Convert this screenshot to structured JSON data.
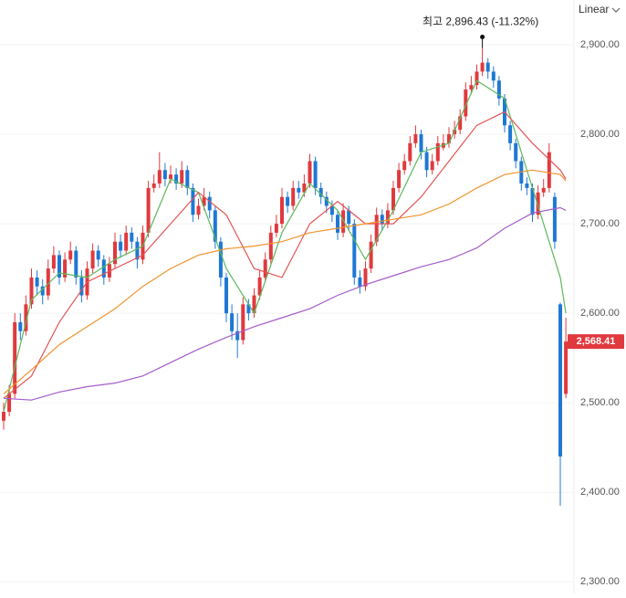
{
  "chart_data": {
    "type": "candlestick",
    "scale_mode": "Linear",
    "annotation": "최고 2,896.43 (-11.32%)",
    "last_price_label": "2,568.41",
    "up_color": "#e0393e",
    "down_color": "#1e78d4",
    "ylim": [
      2287,
      2950
    ],
    "yticks": [
      {
        "value": 2300,
        "label": "2,300.00"
      },
      {
        "value": 2400,
        "label": "2,400.00"
      },
      {
        "value": 2500,
        "label": "2,500.00"
      },
      {
        "value": 2600,
        "label": "2,600.00"
      },
      {
        "value": 2700,
        "label": "2,700.00"
      },
      {
        "value": 2800,
        "label": "2,800.00"
      },
      {
        "value": 2900,
        "label": "2,900.00"
      }
    ],
    "grid": true,
    "open": [
      2480,
      2490,
      2510,
      2590,
      2580,
      2610,
      2640,
      2630,
      2620,
      2650,
      2665,
      2640,
      2660,
      2670,
      2640,
      2620,
      2650,
      2670,
      2660,
      2640,
      2655,
      2680,
      2670,
      2690,
      2680,
      2660,
      2690,
      2740,
      2745,
      2760,
      2750,
      2755,
      2745,
      2760,
      2740,
      2710,
      2720,
      2730,
      2715,
      2680,
      2640,
      2600,
      2580,
      2570,
      2610,
      2600,
      2620,
      2640,
      2660,
      2690,
      2700,
      2730,
      2720,
      2740,
      2735,
      2745,
      2770,
      2740,
      2730,
      2720,
      2710,
      2690,
      2715,
      2700,
      2640,
      2630,
      2650,
      2680,
      2710,
      2700,
      2715,
      2740,
      2760,
      2770,
      2790,
      2800,
      2780,
      2760,
      2770,
      2785,
      2790,
      2800,
      2805,
      2820,
      2850,
      2855,
      2870,
      2880,
      2870,
      2860,
      2840,
      2810,
      2790,
      2770,
      2745,
      2740,
      2710,
      2735,
      2740,
      2730,
      2610,
      2510
    ],
    "high": [
      2500,
      2520,
      2600,
      2600,
      2620,
      2650,
      2648,
      2638,
      2660,
      2675,
      2670,
      2668,
      2680,
      2675,
      2648,
      2658,
      2678,
      2676,
      2665,
      2663,
      2690,
      2688,
      2698,
      2696,
      2685,
      2698,
      2748,
      2755,
      2780,
      2768,
      2765,
      2762,
      2770,
      2765,
      2745,
      2728,
      2740,
      2736,
      2720,
      2685,
      2645,
      2610,
      2600,
      2618,
      2616,
      2628,
      2648,
      2668,
      2698,
      2710,
      2740,
      2736,
      2748,
      2748,
      2755,
      2778,
      2775,
      2746,
      2736,
      2726,
      2715,
      2723,
      2720,
      2705,
      2648,
      2658,
      2688,
      2718,
      2716,
      2723,
      2748,
      2768,
      2778,
      2798,
      2810,
      2805,
      2786,
      2778,
      2798,
      2800,
      2808,
      2815,
      2828,
      2858,
      2865,
      2878,
      2896.43,
      2885,
      2876,
      2865,
      2845,
      2815,
      2795,
      2775,
      2752,
      2745,
      2743,
      2750,
      2790,
      2735,
      2612,
      2595
    ],
    "low": [
      2470,
      2485,
      2505,
      2570,
      2575,
      2605,
      2620,
      2610,
      2615,
      2645,
      2632,
      2635,
      2655,
      2632,
      2612,
      2615,
      2645,
      2652,
      2632,
      2635,
      2650,
      2662,
      2665,
      2672,
      2650,
      2655,
      2685,
      2735,
      2740,
      2742,
      2745,
      2738,
      2740,
      2732,
      2702,
      2705,
      2715,
      2706,
      2672,
      2630,
      2590,
      2570,
      2550,
      2565,
      2592,
      2595,
      2615,
      2635,
      2655,
      2685,
      2695,
      2712,
      2715,
      2728,
      2730,
      2740,
      2732,
      2722,
      2712,
      2702,
      2682,
      2685,
      2692,
      2632,
      2622,
      2625,
      2645,
      2675,
      2692,
      2695,
      2710,
      2735,
      2755,
      2765,
      2785,
      2772,
      2752,
      2755,
      2765,
      2782,
      2785,
      2795,
      2800,
      2815,
      2845,
      2850,
      2865,
      2862,
      2852,
      2832,
      2802,
      2782,
      2762,
      2737,
      2732,
      2702,
      2705,
      2730,
      2735,
      2672,
      2385,
      2505
    ],
    "close": [
      2490,
      2510,
      2590,
      2580,
      2610,
      2640,
      2630,
      2620,
      2650,
      2665,
      2640,
      2660,
      2670,
      2640,
      2620,
      2650,
      2670,
      2660,
      2640,
      2655,
      2680,
      2670,
      2690,
      2680,
      2660,
      2690,
      2740,
      2745,
      2760,
      2750,
      2755,
      2745,
      2760,
      2740,
      2710,
      2720,
      2730,
      2715,
      2680,
      2640,
      2600,
      2580,
      2570,
      2610,
      2600,
      2620,
      2640,
      2660,
      2690,
      2700,
      2730,
      2720,
      2740,
      2735,
      2745,
      2770,
      2740,
      2730,
      2720,
      2710,
      2690,
      2715,
      2700,
      2640,
      2630,
      2650,
      2680,
      2710,
      2700,
      2715,
      2740,
      2760,
      2770,
      2790,
      2800,
      2780,
      2760,
      2770,
      2790,
      2790,
      2800,
      2805,
      2820,
      2850,
      2855,
      2870,
      2880,
      2870,
      2860,
      2840,
      2810,
      2790,
      2770,
      2745,
      2740,
      2710,
      2735,
      2740,
      2780,
      2680,
      2440,
      2568.41
    ],
    "moving_averages": [
      {
        "color": "#5cb85c",
        "x": [
          0,
          5,
          10,
          15,
          20,
          25,
          30,
          35,
          40,
          45,
          50,
          55,
          60,
          65,
          70,
          75,
          80,
          85,
          90,
          95,
          100,
          101
        ],
        "values": [
          2490,
          2615,
          2645,
          2640,
          2660,
          2675,
          2750,
          2735,
          2650,
          2600,
          2690,
          2745,
          2715,
          2660,
          2715,
          2780,
          2790,
          2860,
          2840,
          2740,
          2640,
          2600
        ]
      },
      {
        "color": "#e25555",
        "x": [
          0,
          5,
          10,
          15,
          20,
          25,
          30,
          35,
          40,
          45,
          50,
          55,
          60,
          65,
          70,
          75,
          80,
          85,
          90,
          95,
          100,
          101
        ],
        "values": [
          2505,
          2530,
          2590,
          2635,
          2650,
          2665,
          2700,
          2735,
          2710,
          2650,
          2640,
          2700,
          2725,
          2700,
          2700,
          2730,
          2770,
          2810,
          2825,
          2790,
          2760,
          2750
        ]
      },
      {
        "color": "#f0932b",
        "x": [
          0,
          5,
          10,
          15,
          20,
          25,
          30,
          35,
          40,
          45,
          50,
          55,
          60,
          65,
          70,
          75,
          80,
          85,
          90,
          95,
          100,
          101
        ],
        "values": [
          2510,
          2537,
          2565,
          2585,
          2605,
          2630,
          2650,
          2665,
          2672,
          2675,
          2680,
          2690,
          2695,
          2700,
          2705,
          2710,
          2722,
          2740,
          2755,
          2760,
          2755,
          2748
        ]
      },
      {
        "color": "#a55cc9",
        "x": [
          0,
          5,
          10,
          15,
          20,
          25,
          30,
          35,
          40,
          45,
          50,
          55,
          60,
          65,
          70,
          75,
          80,
          85,
          90,
          95,
          100,
          101
        ],
        "values": [
          2505,
          2503,
          2512,
          2518,
          2522,
          2530,
          2545,
          2560,
          2573,
          2585,
          2595,
          2605,
          2620,
          2632,
          2642,
          2652,
          2660,
          2673,
          2695,
          2712,
          2718,
          2715
        ]
      }
    ]
  }
}
